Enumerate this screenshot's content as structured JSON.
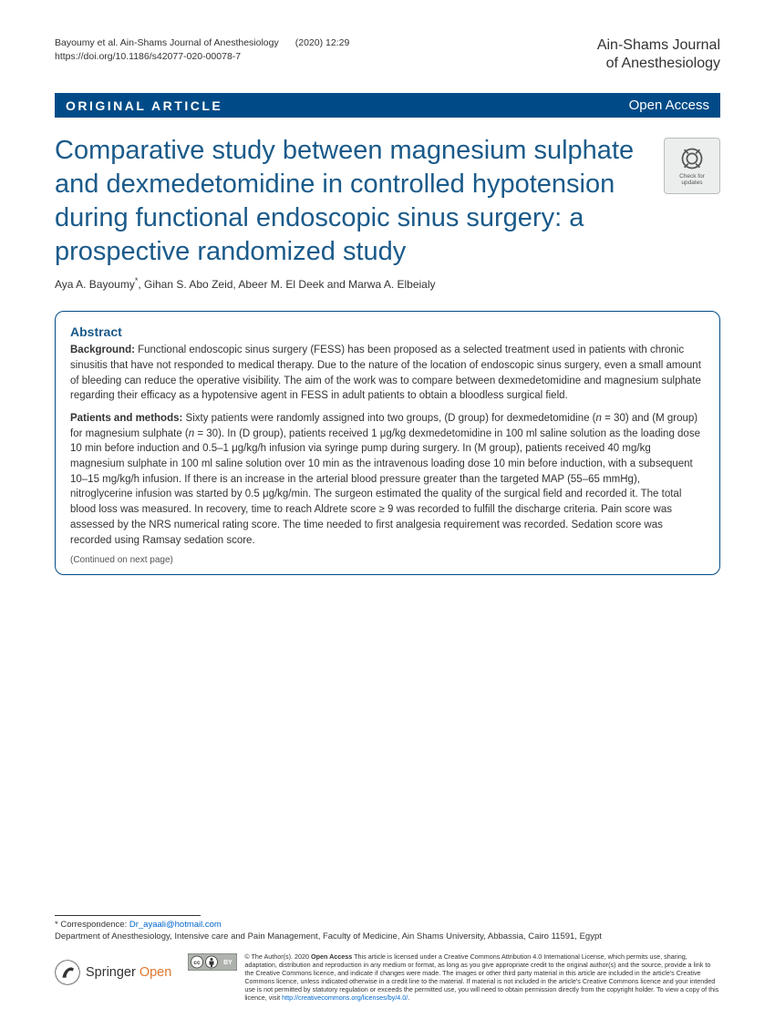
{
  "header": {
    "citation_authors": "Bayoumy et al. Ain-Shams Journal of Anesthesiology",
    "citation_ref": "(2020) 12:29",
    "doi": "https://doi.org/10.1186/s42077-020-00078-7",
    "journal_line1": "Ain-Shams Journal",
    "journal_line2": "of Anesthesiology"
  },
  "banner": {
    "type": "ORIGINAL ARTICLE",
    "access": "Open Access"
  },
  "title": "Comparative study between magnesium sulphate and dexmedetomidine in controlled hypotension during functional endoscopic sinus surgery: a prospective randomized study",
  "update_badge": {
    "line1": "Check for",
    "line2": "updates"
  },
  "authors_html": "Aya A. Bayoumy<sup>*</sup>, Gihan S. Abo Zeid, Abeer M. El Deek and Marwa A. Elbeialy",
  "abstract": {
    "heading": "Abstract",
    "background_label": "Background:",
    "background_text": " Functional endoscopic sinus surgery (FESS) has been proposed as a selected treatment used in patients with chronic sinusitis that have not responded to medical therapy. Due to the nature of the location of endoscopic sinus surgery, even a small amount of bleeding can reduce the operative visibility. The aim of the work was to compare between dexmedetomidine and magnesium sulphate regarding their efficacy as a hypotensive agent in FESS in adult patients to obtain a bloodless surgical field.",
    "methods_label": "Patients and methods:",
    "methods_html": " Sixty patients were randomly assigned into two groups, (D group) for dexmedetomidine (<i>n</i> = 30) and (M group) for magnesium sulphate (<i>n</i> = 30). In (D group), patients received 1 μg/kg dexmedetomidine in 100 ml saline solution as the loading dose 10 min before induction and 0.5–1 μg/kg/h infusion via syringe pump during surgery. In (M group), patients received 40 mg/kg magnesium sulphate in 100 ml saline solution over 10 min as the intravenous loading dose 10 min before induction, with a subsequent 10–15 mg/kg/h infusion. If there is an increase in the arterial blood pressure greater than the targeted MAP (55–65 mmHg), nitroglycerine infusion was started by 0.5 μg/kg/min. The surgeon estimated the quality of the surgical field and recorded it. The total blood loss was measured. In recovery, time to reach Aldrete score ≥ 9 was recorded to fulfill the discharge criteria. Pain score was assessed by the NRS numerical rating score. The time needed to first analgesia requirement was recorded. Sedation score was recorded using Ramsay sedation score.",
    "continued": "(Continued on next page)"
  },
  "footer": {
    "corr_label": "* Correspondence: ",
    "corr_email": "Dr_ayaali@hotmail.com",
    "corr_affil": "Department of Anesthesiology, Intensive care and Pain Management, Faculty of Medicine, Ain Shams University, Abbassia, Cairo 11591, Egypt",
    "springer": "Springer",
    "open": "Open",
    "license_html": "© The Author(s). 2020 <b>Open Access</b> This article is licensed under a Creative Commons Attribution 4.0 International License, which permits use, sharing, adaptation, distribution and reproduction in any medium or format, as long as you give appropriate credit to the original author(s) and the source, provide a link to the Creative Commons licence, and indicate if changes were made. The images or other third party material in this article are included in the article's Creative Commons licence, unless indicated otherwise in a credit line to the material. If material is not included in the article's Creative Commons licence and your intended use is not permitted by statutory regulation or exceeds the permitted use, you will need to obtain permission directly from the copyright holder. To view a copy of this licence, visit <a>http://creativecommons.org/licenses/by/4.0/</a>."
  },
  "colors": {
    "brand_blue": "#004b87",
    "title_blue": "#1a5a8a",
    "link_blue": "#0066cc",
    "orange": "#e2762e"
  }
}
